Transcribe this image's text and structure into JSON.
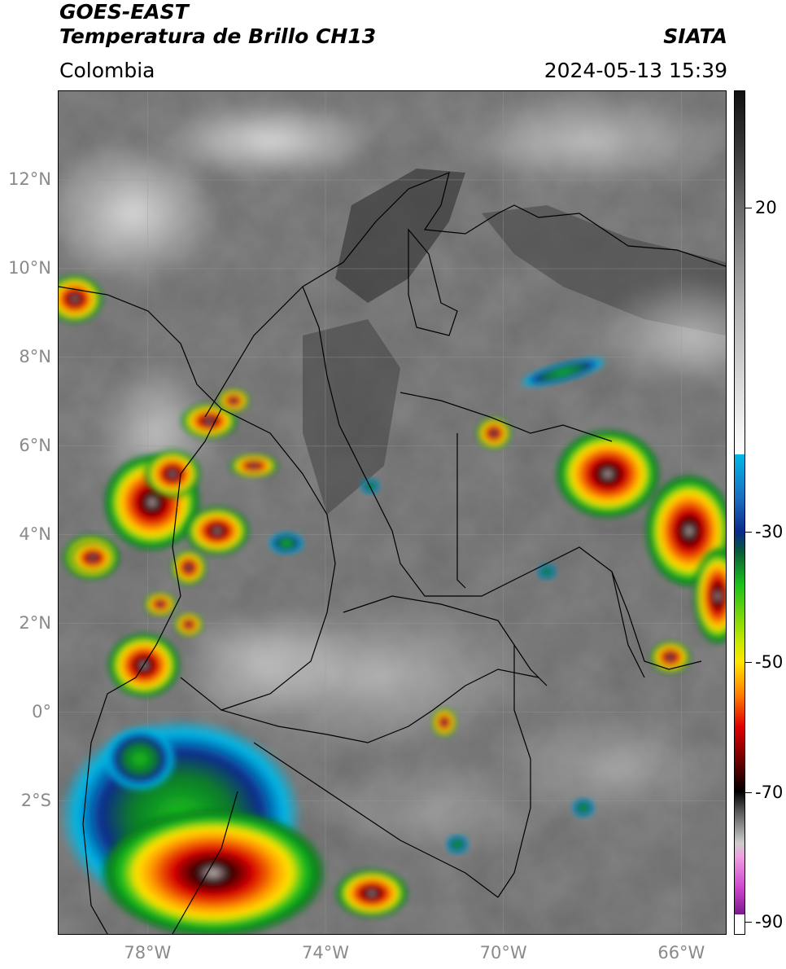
{
  "header": {
    "title_line1": "GOES-EAST",
    "title_line2": "Temperatura de Brillo CH13",
    "region": "Colombia",
    "organization": "SIATA",
    "datetime": "2024-05-13 15:39"
  },
  "map": {
    "lon_range": [
      -80,
      -65
    ],
    "lat_range": [
      -5,
      14
    ],
    "lat_ticks": [
      {
        "value": 12,
        "label": "12°N"
      },
      {
        "value": 10,
        "label": "10°N"
      },
      {
        "value": 8,
        "label": "8°N"
      },
      {
        "value": 6,
        "label": "6°N"
      },
      {
        "value": 4,
        "label": "4°N"
      },
      {
        "value": 2,
        "label": "2°N"
      },
      {
        "value": 0,
        "label": "0°"
      },
      {
        "value": -2,
        "label": "2°S"
      }
    ],
    "lon_ticks": [
      {
        "value": -78,
        "label": "78°W"
      },
      {
        "value": -74,
        "label": "74°W"
      },
      {
        "value": -70,
        "label": "70°W"
      },
      {
        "value": -66,
        "label": "66°W"
      }
    ],
    "grid": true
  },
  "colorbar": {
    "range": [
      -92,
      38
    ],
    "ticks": [
      {
        "value": 20,
        "label": "20"
      },
      {
        "value": -30,
        "label": "-30"
      },
      {
        "value": -50,
        "label": "-50"
      },
      {
        "value": -70,
        "label": "-70"
      },
      {
        "value": -90,
        "label": "-90"
      }
    ],
    "colors": {
      "warm": "#111111",
      "cold_gray": "#ffffff",
      "cyan": "#00b8e6",
      "blue": "#0a2a8a",
      "green": "#19c01b",
      "yellow": "#ffe600",
      "red": "#e00000",
      "darkred": "#300000",
      "magenta": "#cc44cc",
      "purple": "#7a1a8a"
    }
  }
}
